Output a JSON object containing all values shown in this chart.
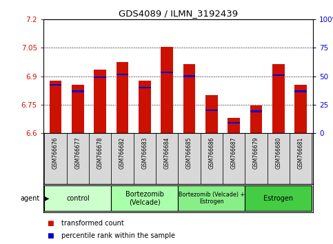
{
  "title": "GDS4089 / ILMN_3192439",
  "samples": [
    "GSM766676",
    "GSM766677",
    "GSM766678",
    "GSM766682",
    "GSM766683",
    "GSM766684",
    "GSM766685",
    "GSM766686",
    "GSM766687",
    "GSM766679",
    "GSM766680",
    "GSM766681"
  ],
  "bar_values": [
    6.875,
    6.855,
    6.935,
    6.975,
    6.875,
    7.055,
    6.965,
    6.8,
    6.68,
    6.745,
    6.965,
    6.855
  ],
  "percentile_values": [
    6.855,
    6.82,
    6.895,
    6.91,
    6.84,
    6.92,
    6.9,
    6.72,
    6.655,
    6.715,
    6.905,
    6.82
  ],
  "ylim_left": [
    6.6,
    7.2
  ],
  "yticks_left": [
    6.6,
    6.75,
    6.9,
    7.05,
    7.2
  ],
  "yticks_right": [
    0,
    25,
    50,
    75,
    100
  ],
  "ylim_right": [
    0,
    100
  ],
  "bar_color": "#cc1100",
  "percentile_color": "#0000cc",
  "grid_color": "#000000",
  "background_color": "#ffffff",
  "agent_groups": [
    {
      "label": "control",
      "start": 0,
      "end": 3
    },
    {
      "label": "Bortezomib\n(Velcade)",
      "start": 3,
      "end": 6
    },
    {
      "label": "Bortezomib (Velcade) +\nEstrogen",
      "start": 6,
      "end": 9
    },
    {
      "label": "Estrogen",
      "start": 9,
      "end": 12
    }
  ],
  "agent_colors": [
    "#ccffcc",
    "#aaffaa",
    "#88ee88",
    "#44cc44"
  ],
  "legend_red": "transformed count",
  "legend_blue": "percentile rank within the sample",
  "bar_width": 0.55,
  "n_samples": 12
}
